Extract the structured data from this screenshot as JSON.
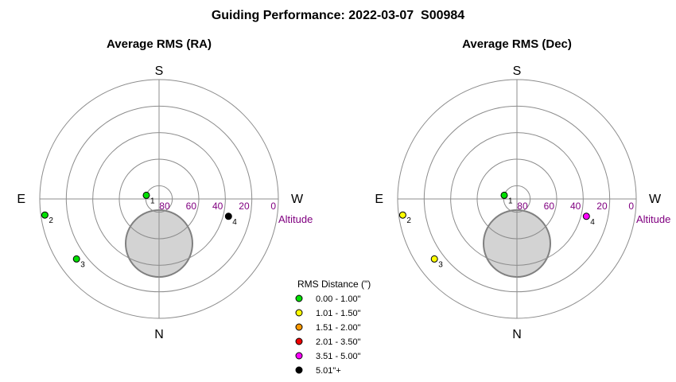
{
  "chart_data": {
    "type": "scatter",
    "title": "Guiding Performance: 2022-03-07  S00984",
    "altitude_axis_label": "Altitude",
    "altitude_ticks": [
      80,
      60,
      40,
      20,
      0
    ],
    "directions": {
      "north": "N",
      "south": "S",
      "east": "E",
      "west": "W"
    },
    "legend": {
      "title": "RMS Distance (\")",
      "entries": [
        {
          "label": "0.00 - 1.00\"",
          "color": "#00e000"
        },
        {
          "label": "1.01 - 1.50\"",
          "color": "#ffff00"
        },
        {
          "label": "1.51 - 2.00\"",
          "color": "#ff9900"
        },
        {
          "label": "2.01 - 3.50\"",
          "color": "#ee0000"
        },
        {
          "label": "3.51 - 5.00\"",
          "color": "#ff00ff"
        },
        {
          "label": "5.01\"+",
          "color": "#000000"
        }
      ]
    },
    "obstruction_color": "#d3d3d3",
    "panels": [
      {
        "subtitle": "Average RMS (RA)",
        "points": [
          {
            "label": "1",
            "azimuth": 106,
            "altitude": 80,
            "color": "#00e000"
          },
          {
            "label": "2",
            "azimuth": 82,
            "altitude": 3,
            "color": "#00e000"
          },
          {
            "label": "3",
            "azimuth": 54,
            "altitude": 13,
            "color": "#00e000"
          },
          {
            "label": "4",
            "azimuth": 284,
            "altitude": 36,
            "color": "#000000"
          }
        ]
      },
      {
        "subtitle": "Average RMS (Dec)",
        "points": [
          {
            "label": "1",
            "azimuth": 106,
            "altitude": 80,
            "color": "#00e000"
          },
          {
            "label": "2",
            "azimuth": 82,
            "altitude": 3,
            "color": "#ffff00"
          },
          {
            "label": "3",
            "azimuth": 54,
            "altitude": 13,
            "color": "#ffff00"
          },
          {
            "label": "4",
            "azimuth": 284,
            "altitude": 36,
            "color": "#ff00ff"
          }
        ]
      }
    ]
  }
}
